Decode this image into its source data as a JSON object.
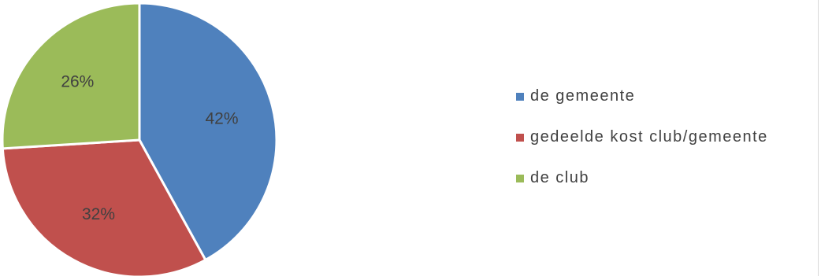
{
  "chart_data": {
    "type": "pie",
    "categories": [
      "de gemeente",
      "gedeelde kost club/gemeente",
      "de club"
    ],
    "values": [
      42,
      32,
      26
    ],
    "data_labels": [
      "42%",
      "32%",
      "26%"
    ],
    "colors": [
      "#4f81bd",
      "#c0504d",
      "#9bbb59"
    ],
    "start_angle_deg": 0,
    "direction": "clockwise",
    "legend_position": "right"
  }
}
